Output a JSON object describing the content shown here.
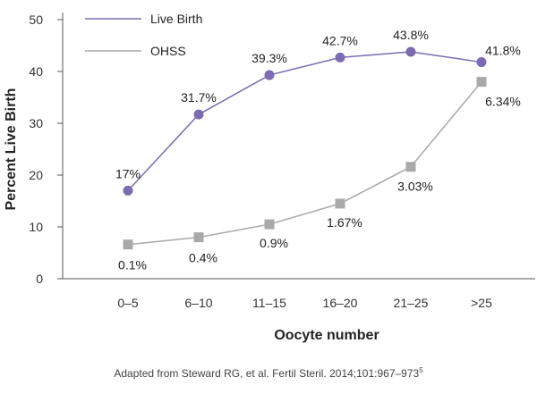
{
  "chart_data": {
    "type": "line",
    "categories": [
      "0–5",
      "6–10",
      "11–15",
      "16–20",
      "21–25",
      ">25"
    ],
    "xlabel": "Oocyte number",
    "ylabel": "Percent Live Birth",
    "ylim": [
      0,
      50
    ],
    "yticks": [
      0,
      10,
      20,
      30,
      40,
      50
    ],
    "grid": false,
    "legend_position": "top-left",
    "series": [
      {
        "name": "Live Birth",
        "color": "#7b6bb0",
        "marker": "circle",
        "values": [
          17,
          31.7,
          39.3,
          42.7,
          43.8,
          41.8
        ],
        "labels": [
          "17%",
          "31.7%",
          "39.3%",
          "42.7%",
          "43.8%",
          "41.8%"
        ]
      },
      {
        "name": "OHSS",
        "color": "#a9a9a9",
        "marker": "square",
        "values": [
          6.6,
          8,
          10.5,
          14.5,
          21.6,
          38
        ],
        "labels": [
          "0.1%",
          "0.4%",
          "0.9%",
          "1.67%",
          "3.03%",
          "6.34%"
        ]
      }
    ]
  },
  "caption": {
    "text": "Adapted from Steward RG, et al. Fertil Steril. 2014;101:967–973",
    "ref": "5"
  }
}
